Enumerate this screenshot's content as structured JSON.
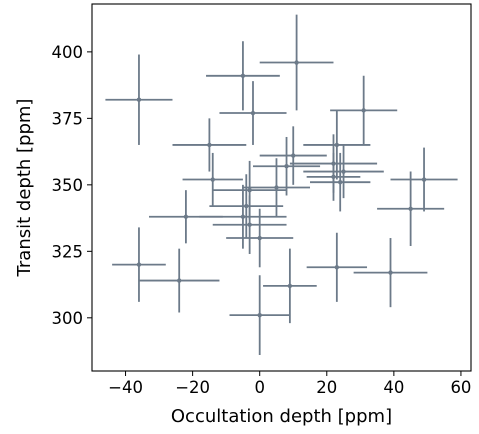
{
  "chart_data": {
    "type": "scatter",
    "xlabel": "Occultation depth [ppm]",
    "ylabel": "Transit depth [ppm]",
    "xlim": [
      -50,
      63
    ],
    "ylim": [
      280,
      418
    ],
    "xticks": [
      -40,
      -20,
      0,
      20,
      40,
      60
    ],
    "yticks": [
      300,
      325,
      350,
      375,
      400
    ],
    "grid": false,
    "color": "#6c7a89",
    "points": [
      {
        "x": -36,
        "y": 382,
        "xerr": 10,
        "yerr": 17
      },
      {
        "x": -5,
        "y": 391,
        "xerr": 11,
        "yerr": 13
      },
      {
        "x": 11,
        "y": 396,
        "xerr": 11,
        "yerr": 18
      },
      {
        "x": -2,
        "y": 377,
        "xerr": 10,
        "yerr": 12
      },
      {
        "x": 31,
        "y": 378,
        "xerr": 10,
        "yerr": 13
      },
      {
        "x": -15,
        "y": 365,
        "xerr": 11,
        "yerr": 10
      },
      {
        "x": 23,
        "y": 365,
        "xerr": 10,
        "yerr": 13
      },
      {
        "x": 10,
        "y": 361,
        "xerr": 10,
        "yerr": 11
      },
      {
        "x": 22,
        "y": 358,
        "xerr": 13,
        "yerr": 11
      },
      {
        "x": 8,
        "y": 357,
        "xerr": 10,
        "yerr": 11
      },
      {
        "x": 25,
        "y": 355,
        "xerr": 12,
        "yerr": 10
      },
      {
        "x": -14,
        "y": 352,
        "xerr": 9,
        "yerr": 10
      },
      {
        "x": 22,
        "y": 353,
        "xerr": 8,
        "yerr": 9
      },
      {
        "x": 24,
        "y": 351,
        "xerr": 9,
        "yerr": 11
      },
      {
        "x": 49,
        "y": 352,
        "xerr": 10,
        "yerr": 12
      },
      {
        "x": -3,
        "y": 348,
        "xerr": 11,
        "yerr": 11
      },
      {
        "x": 5,
        "y": 349,
        "xerr": 10,
        "yerr": 11
      },
      {
        "x": -4,
        "y": 342,
        "xerr": 11,
        "yerr": 12
      },
      {
        "x": -5,
        "y": 338,
        "xerr": 13,
        "yerr": 12
      },
      {
        "x": 45,
        "y": 341,
        "xerr": 10,
        "yerr": 14
      },
      {
        "x": -22,
        "y": 338,
        "xerr": 11,
        "yerr": 10
      },
      {
        "x": -3,
        "y": 335,
        "xerr": 11,
        "yerr": 11
      },
      {
        "x": 0,
        "y": 330,
        "xerr": 10,
        "yerr": 11
      },
      {
        "x": -36,
        "y": 320,
        "xerr": 8,
        "yerr": 14
      },
      {
        "x": -24,
        "y": 314,
        "xerr": 12,
        "yerr": 12
      },
      {
        "x": 23,
        "y": 319,
        "xerr": 9,
        "yerr": 13
      },
      {
        "x": 39,
        "y": 317,
        "xerr": 11,
        "yerr": 13
      },
      {
        "x": 9,
        "y": 312,
        "xerr": 8,
        "yerr": 14
      },
      {
        "x": 0,
        "y": 301,
        "xerr": 9,
        "yerr": 15
      }
    ]
  }
}
